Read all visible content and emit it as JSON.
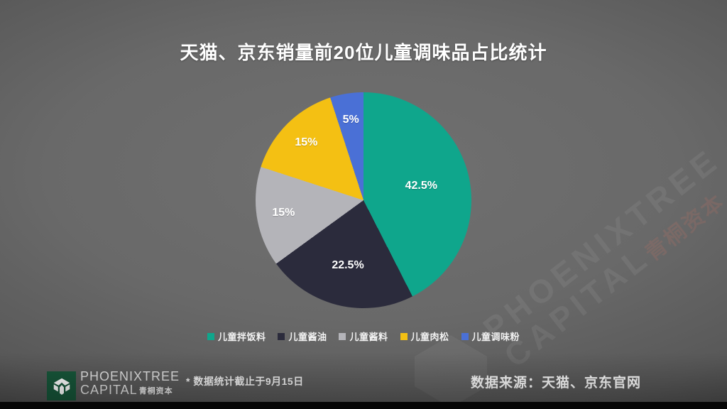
{
  "header": {
    "title": "天猫、京东销量前20位儿童调味品占比统计"
  },
  "chart_data": {
    "type": "pie",
    "title": "天猫、京东销量前20位儿童调味品占比统计",
    "unit": "percent",
    "start_angle_deg": 0,
    "direction": "clockwise",
    "legend_position": "bottom",
    "slices": [
      {
        "label": "儿童拌饭料",
        "value": 42.5,
        "display_label": "42.5%",
        "color": "#0fa68c"
      },
      {
        "label": "儿童酱油",
        "value": 22.5,
        "display_label": "22.5%",
        "color": "#2b2b3c"
      },
      {
        "label": "儿童酱料",
        "value": 15,
        "display_label": "15%",
        "color": "#b4b4b9"
      },
      {
        "label": "儿童肉松",
        "value": 15,
        "display_label": "15%",
        "color": "#f4c013"
      },
      {
        "label": "儿童调味粉",
        "value": 5,
        "display_label": "5%",
        "color": "#4a70d6"
      }
    ]
  },
  "footer": {
    "logo": {
      "brand_line1": "PHOENIXTREE",
      "brand_line2": "CAPITAL",
      "brand_cn": "青桐资本",
      "box_color": "#17573a"
    },
    "note": "* 数据统计截止于9月15日",
    "source": "数据来源：天猫、京东官网"
  },
  "watermark": {
    "line1": "PHOENIXTREE",
    "line2": "CAPITAL",
    "cn": "青桐资本"
  }
}
